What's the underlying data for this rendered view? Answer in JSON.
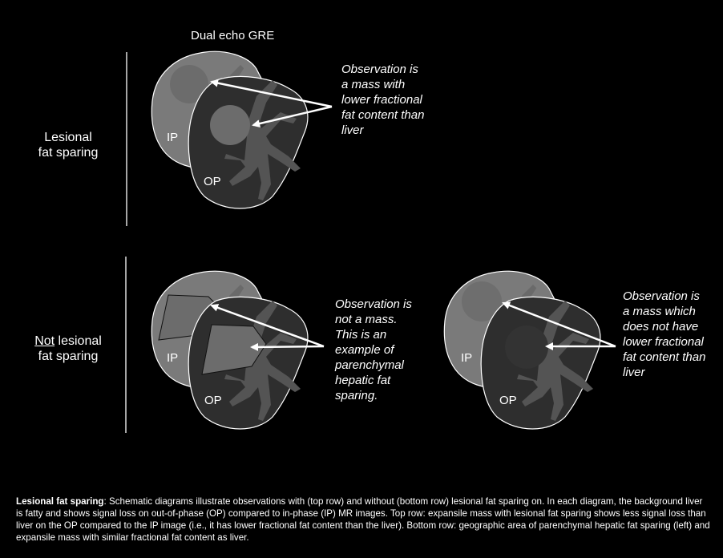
{
  "header": {
    "title": "Dual echo GRE"
  },
  "rows": {
    "top": {
      "label_line1": "Lesional",
      "label_line2": "fat sparing"
    },
    "bottom": {
      "label_not": "Not",
      "label_rest": " lesional",
      "label_line2": "fat sparing"
    }
  },
  "panels": {
    "top": {
      "ip_tag": "IP",
      "op_tag": "OP",
      "observation": "Observation is\na mass with\nlower fractional\nfat content than\nliver"
    },
    "bottom_left": {
      "ip_tag": "IP",
      "op_tag": "OP",
      "observation": "Observation is\nnot a mass.\nThis is an\nexample of\nparenchymal\nhepatic fat\nsparing."
    },
    "bottom_right": {
      "ip_tag": "IP",
      "op_tag": "OP",
      "observation": "Observation is\na mass which\ndoes not have\nlower fractional\nfat content than\nliver"
    }
  },
  "caption": {
    "heading": "Lesional fat sparing",
    "text": ": Schematic diagrams illustrate observations with (top row) and without (bottom row) lesional fat sparing on. In each diagram, the background liver is fatty and shows signal loss on out-of-phase (OP) compared to in-phase (IP) MR images. Top row: expansile mass with lesional fat sparing shows less signal loss than liver on the OP compared to the IP image (i.e., it has lower fractional fat content than the liver). Bottom row: geographic area of parenchymal hepatic fat sparing (left) and expansile mass with similar fractional fat content as liver."
  },
  "colors": {
    "ip_liver": "#7a7a7a",
    "op_liver": "#2e2e2e",
    "vessel": "#545454",
    "outline": "#ffffff"
  }
}
